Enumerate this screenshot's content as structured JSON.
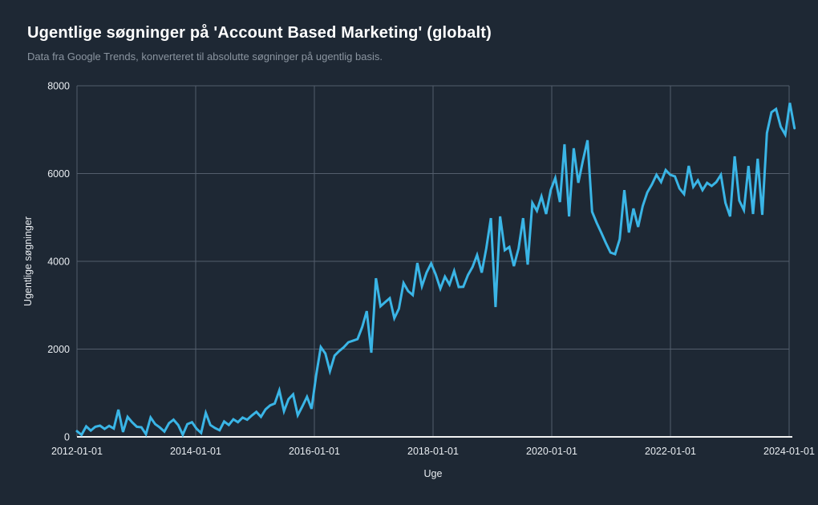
{
  "chart_data": {
    "type": "line",
    "title": "Ugentlige søgninger på 'Account Based Marketing' (globalt)",
    "subtitle": "Data fra Google Trends, konverteret til absolutte søgninger på ugentlig basis.",
    "xlabel": "Uge",
    "ylabel": "Ugentlige søgninger",
    "grid": true,
    "legend": "none",
    "x_axis": {
      "min_year": 2012,
      "max_year": 2024,
      "tick_years": [
        2012,
        2014,
        2016,
        2018,
        2020,
        2022,
        2024
      ],
      "tick_labels": [
        "2012-01-01",
        "2014-01-01",
        "2016-01-01",
        "2018-01-01",
        "2020-01-01",
        "2022-01-01",
        "2024-01-01"
      ]
    },
    "y_axis": {
      "min": 0,
      "max": 8000,
      "ticks": [
        0,
        2000,
        4000,
        6000,
        8000
      ]
    },
    "series": [
      {
        "name": "Ugentlige søgninger",
        "x_start_year": 2012.0,
        "x_step_years": 0.0775,
        "values": [
          130,
          45,
          240,
          145,
          230,
          255,
          180,
          250,
          190,
          620,
          110,
          455,
          330,
          230,
          220,
          60,
          440,
          290,
          215,
          120,
          310,
          390,
          270,
          50,
          290,
          335,
          185,
          90,
          548,
          270,
          200,
          150,
          350,
          270,
          400,
          335,
          440,
          390,
          486,
          570,
          456,
          627,
          718,
          760,
          1060,
          584,
          858,
          968,
          493,
          694,
          913,
          640,
          1400,
          2045,
          1900,
          1497,
          1850,
          1954,
          2040,
          2155,
          2190,
          2227,
          2500,
          2866,
          1917,
          3615,
          2976,
          3068,
          3160,
          2703,
          2920,
          3505,
          3322,
          3231,
          3962,
          3432,
          3743,
          3950,
          3700,
          3378,
          3652,
          3470,
          3780,
          3414,
          3420,
          3688,
          3871,
          4145,
          3743,
          4300,
          4985,
          2958,
          5022,
          4254,
          4327,
          3890,
          4290,
          4985,
          3926,
          5332,
          5150,
          5478,
          5077,
          5624,
          5898,
          5350,
          6667,
          5022,
          6576,
          5788,
          6300,
          6758,
          5131,
          4875,
          4650,
          4418,
          4200,
          4163,
          4500,
          5624,
          4656,
          5204,
          4783,
          5259,
          5569,
          5752,
          5971,
          5807,
          6081,
          5971,
          5935,
          5661,
          5533,
          6173,
          5697,
          5844,
          5624,
          5788,
          5716,
          5807,
          5971,
          5332,
          5022,
          6392,
          5387,
          5168,
          6173,
          5077,
          6337,
          5059,
          6922,
          7397,
          7470,
          7068,
          6885,
          7609,
          7032
        ]
      }
    ]
  },
  "colors": {
    "background": "#1e2834",
    "line": "#3ab5e6",
    "grid": "#535e6c",
    "axis_line": "#f2f2f2",
    "title": "#ffffff",
    "subtitle": "#8b95a0",
    "tick_label": "#e9edf1"
  }
}
